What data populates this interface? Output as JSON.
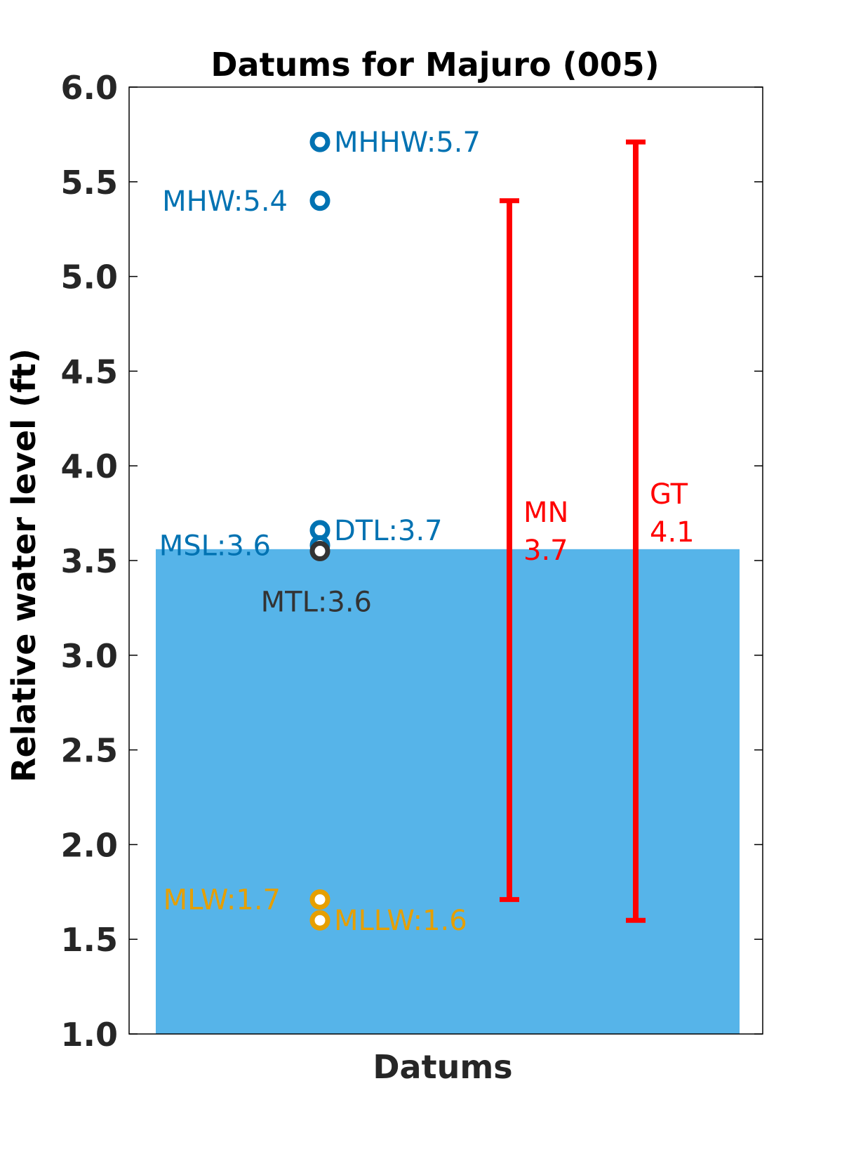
{
  "chart_data": {
    "type": "scatter",
    "title": "Datums for Majuro (005)",
    "xlabel": "Datums",
    "ylabel": "Relative water level (ft)",
    "ylim": [
      1.0,
      6.0
    ],
    "yticks": [
      "1.0",
      "1.5",
      "2.0",
      "2.5",
      "3.0",
      "3.5",
      "4.0",
      "4.5",
      "5.0",
      "5.5",
      "6.0"
    ],
    "yticks_values": [
      1.0,
      1.5,
      2.0,
      2.5,
      3.0,
      3.5,
      4.0,
      4.5,
      5.0,
      5.5,
      6.0
    ],
    "grid": false,
    "background_bar": {
      "top": 3.56,
      "bottom": 1.0,
      "color": "#56B4E9"
    },
    "datums": [
      {
        "label": "MHHW:5.7",
        "value": 5.71,
        "color": "#0072B2"
      },
      {
        "label": "MHW:5.4",
        "value": 5.4,
        "color": "#0072B2"
      },
      {
        "label": "DTL:3.7",
        "value": 3.66,
        "color": "#0072B2"
      },
      {
        "label": "MSL:3.6",
        "value": 3.58,
        "color": "#0072B2"
      },
      {
        "label": "MTL:3.6",
        "value": 3.55,
        "color": "#333333"
      },
      {
        "label": "MLW:1.7",
        "value": 1.71,
        "color": "#E69F00"
      },
      {
        "label": "MLLW:1.6",
        "value": 1.6,
        "color": "#E69F00"
      }
    ],
    "ranges": [
      {
        "name": "MN",
        "value_label": "3.7",
        "low": 1.71,
        "high": 5.4,
        "color": "#FF0000"
      },
      {
        "name": "GT",
        "value_label": "4.1",
        "low": 1.6,
        "high": 5.71,
        "color": "#FF0000"
      }
    ]
  }
}
